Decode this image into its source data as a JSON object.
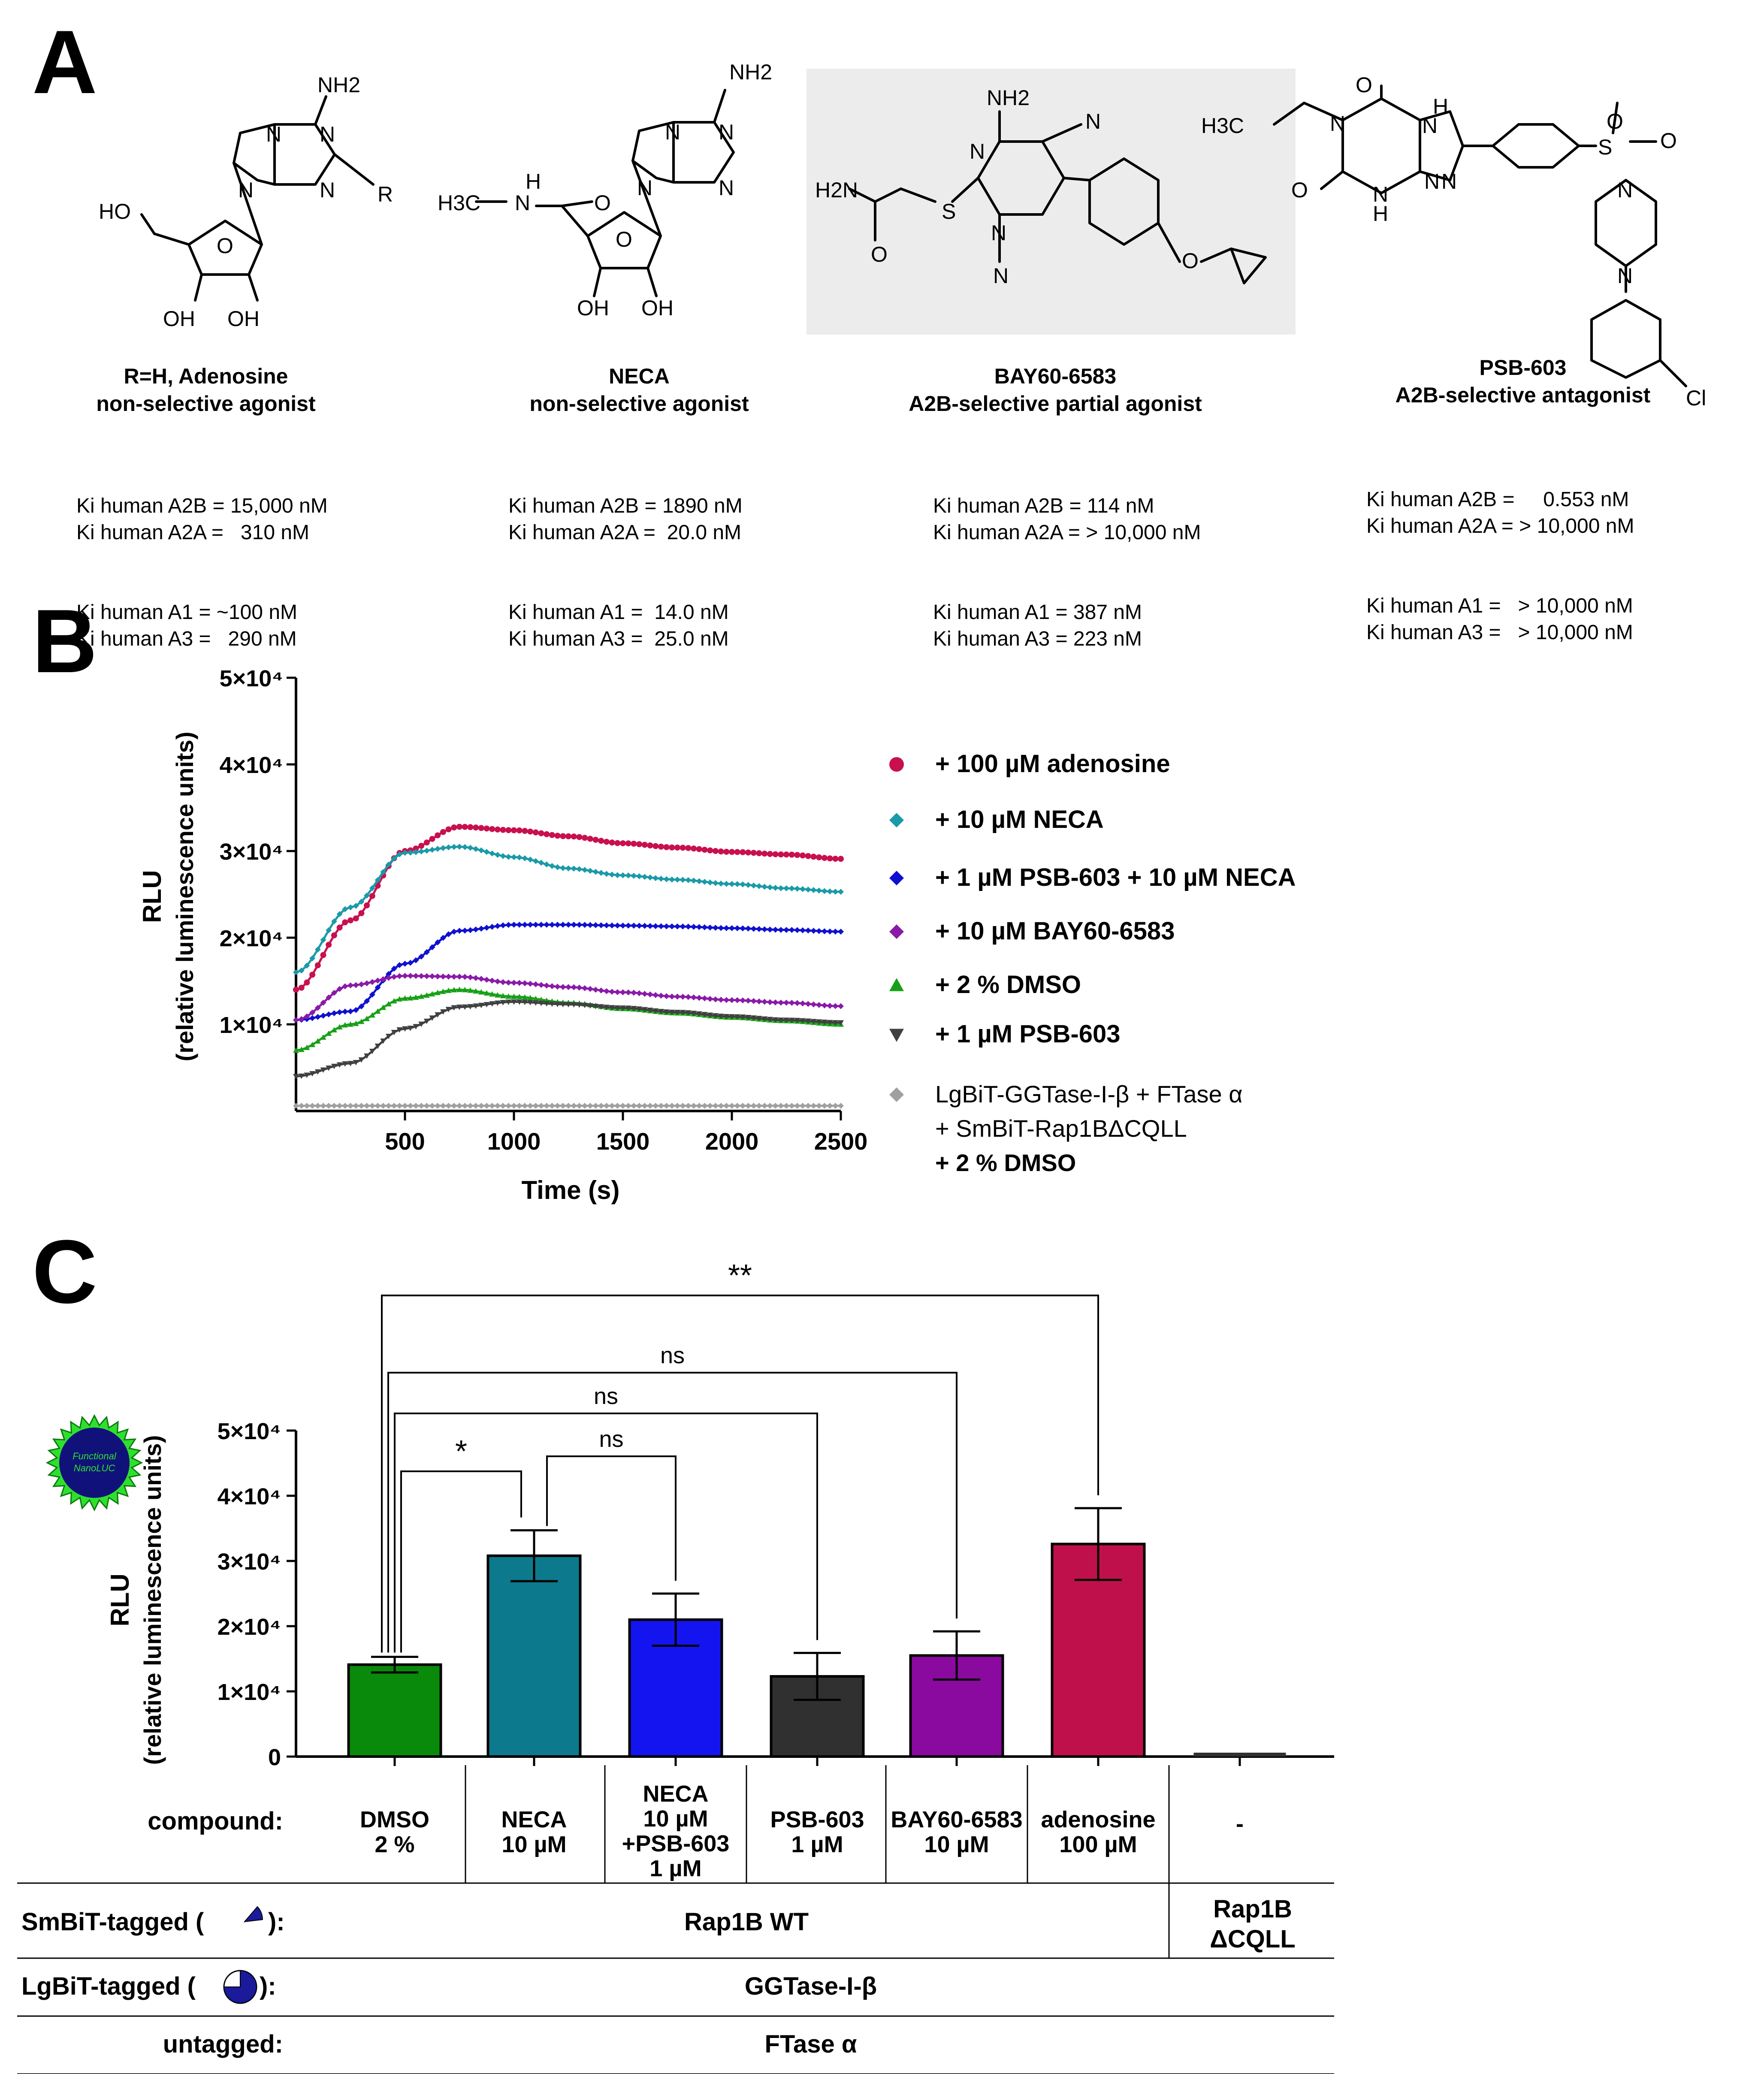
{
  "panels": {
    "a": "A",
    "b": "B",
    "c": "C"
  },
  "panel_a": {
    "compounds": [
      {
        "structure_labels": [
          "NH2",
          "N",
          "N",
          "N",
          "N",
          "R",
          "HO",
          "O",
          "OH",
          "OH"
        ],
        "name_line1": "R=H, Adenosine",
        "name_line2": "non-selective agonist",
        "ki": [
          "Ki human A2B = 15,000 nM",
          "Ki human A2A =   310 nM",
          "Ki human A1 = ~100 nM",
          "Ki human A3 =   290 nM"
        ]
      },
      {
        "structure_labels": [
          "NH2",
          "N",
          "N",
          "N",
          "N",
          "H3C",
          "H",
          "N",
          "O",
          "O",
          "OH",
          "OH"
        ],
        "name_line1": "NECA",
        "name_line2": "non-selective agonist",
        "ki": [
          "Ki human A2B = 1890 nM",
          "Ki human A2A =  20.0 nM",
          "Ki human A1 =  14.0 nM",
          "Ki human A3 =  25.0 nM"
        ]
      },
      {
        "structure_labels": [
          "NH2",
          "N",
          "N",
          "H2N",
          "S",
          "O",
          "N",
          "N",
          "O"
        ],
        "name_line1": "BAY60-6583",
        "name_line2": "A2B-selective partial agonist",
        "ki": [
          "Ki human A2B = 114 nM",
          "Ki human A2A = > 10,000 nM",
          "Ki human A1 = 387 nM",
          "Ki human A3 = 223 nM"
        ]
      },
      {
        "structure_labels": [
          "H3C",
          "O",
          "H",
          "N",
          "N",
          "N",
          "O",
          "N",
          "H",
          "N",
          "S",
          "O",
          "O",
          "N",
          "N",
          "Cl"
        ],
        "name_line1": "PSB-603",
        "name_line2": "A2B-selective antagonist",
        "ki": [
          "Ki human A2B =     0.553 nM",
          "Ki human A2A = > 10,000 nM",
          "Ki human A1 =   > 10,000 nM",
          "Ki human A3 =   > 10,000 nM"
        ]
      }
    ]
  },
  "chart_data": [
    {
      "type": "line",
      "panel": "B",
      "xlabel": "Time (s)",
      "ylabel": "RLU",
      "ylabel2": "(relative luminescence units)",
      "xlim": [
        0,
        2500
      ],
      "ylim": [
        0,
        50000
      ],
      "xticks": [
        500,
        1000,
        1500,
        2000,
        2500
      ],
      "yticks": [
        10000,
        20000,
        30000,
        40000,
        50000
      ],
      "ytick_labels": [
        "1×10⁴",
        "2×10⁴",
        "3×10⁴",
        "4×10⁴",
        "5×10⁴"
      ],
      "x": [
        0,
        250,
        500,
        750,
        1000,
        1250,
        1500,
        1750,
        2000,
        2250,
        2500
      ],
      "series": [
        {
          "name": "+ 100 µM adenosine",
          "color": "#c8104f",
          "marker": "circle",
          "values": [
            14000,
            22000,
            30000,
            32800,
            32400,
            31700,
            30900,
            30400,
            29900,
            29600,
            29100
          ]
        },
        {
          "name": "+ 10 µM NECA",
          "color": "#1a9aa8",
          "marker": "diamond",
          "values": [
            16000,
            23500,
            29800,
            30500,
            29300,
            28000,
            27200,
            26700,
            26200,
            25700,
            25300
          ]
        },
        {
          "name": "+ 1 µM PSB-603 + 10 µM NECA",
          "color": "#1010d0",
          "marker": "diamond",
          "values": [
            10500,
            11500,
            17000,
            20800,
            21500,
            21500,
            21400,
            21300,
            21100,
            20900,
            20700
          ]
        },
        {
          "name": "+ 10 µM BAY60-6583",
          "color": "#8a1aa8",
          "marker": "diamond",
          "values": [
            10500,
            14500,
            15600,
            15500,
            14800,
            14300,
            13700,
            13200,
            12800,
            12500,
            12100
          ]
        },
        {
          "name": "+ 2 % DMSO",
          "color": "#16a016",
          "marker": "triangle-up",
          "values": [
            7000,
            10000,
            13000,
            14000,
            13200,
            12500,
            11800,
            11300,
            10800,
            10400,
            10000
          ]
        },
        {
          "name": "+ 1 µM PSB-603",
          "color": "#404040",
          "marker": "triangle-down",
          "values": [
            4000,
            5500,
            9500,
            12000,
            12600,
            12300,
            11900,
            11400,
            10900,
            10500,
            10200
          ]
        },
        {
          "name_lines": [
            "LgBiT-GGTase-I-β + FTase α",
            "+ SmBiT-Rap1BΔCQLL",
            "+ 2 % DMSO"
          ],
          "color": "#a0a0a0",
          "marker": "diamond",
          "values": [
            600,
            600,
            600,
            600,
            600,
            600,
            600,
            600,
            600,
            600,
            600
          ]
        }
      ]
    },
    {
      "type": "bar",
      "panel": "C",
      "ylabel": "RLU",
      "ylabel2": "(relative luminescence units)",
      "ylim": [
        0,
        50000
      ],
      "yticks": [
        0,
        10000,
        20000,
        30000,
        40000,
        50000
      ],
      "ytick_labels": [
        "0",
        "1×10⁴",
        "2×10⁴",
        "3×10⁴",
        "4×10⁴",
        "5×10⁴"
      ],
      "categories": [
        "DMSO 2 %",
        "NECA 10 µM",
        "NECA 10 µM +PSB-603 1 µM",
        "PSB-603 1 µM",
        "BAY60-6583 10 µM",
        "adenosine 100 µM",
        "-"
      ],
      "values": [
        14100,
        30800,
        21000,
        12300,
        15500,
        32600,
        600
      ],
      "errors": [
        1200,
        3900,
        4000,
        3600,
        3700,
        5500,
        0
      ],
      "colors": [
        "#0a8a0a",
        "#0c7a8c",
        "#1414f0",
        "#303030",
        "#8a0aa0",
        "#c0104c",
        "#303030"
      ],
      "significance": [
        {
          "from": 0,
          "to": 5,
          "label": "**"
        },
        {
          "from": 0,
          "to": 4,
          "label": "ns"
        },
        {
          "from": 0,
          "to": 3,
          "label": "ns"
        },
        {
          "from": 1,
          "to": 2,
          "label": "ns"
        },
        {
          "from": 0,
          "to": 1,
          "label": "*"
        }
      ],
      "badge_text": [
        "Functional",
        "NanoLUC"
      ]
    }
  ],
  "table_c": {
    "compound_label": "compound:",
    "compounds": [
      [
        "DMSO",
        "2 %"
      ],
      [
        "NECA",
        "10 µM"
      ],
      [
        "NECA",
        "10 µM",
        "+PSB-603",
        "1 µM"
      ],
      [
        "PSB-603",
        "1 µM"
      ],
      [
        "BAY60-6583",
        "10 µM"
      ],
      [
        "adenosine",
        "100 µM"
      ],
      [
        "-"
      ]
    ],
    "smbit_label": "SmBiT-tagged (",
    "smbit_label_end": "):",
    "smbit_value": "Rap1B WT",
    "smbit_value_alt": [
      "Rap1B",
      "ΔCQLL"
    ],
    "lgbit_label": "LgBiT-tagged (",
    "lgbit_label_end": "):",
    "lgbit_value": "GGTase-I-β",
    "untagged_label": "untagged:",
    "untagged_value": "FTase α"
  }
}
